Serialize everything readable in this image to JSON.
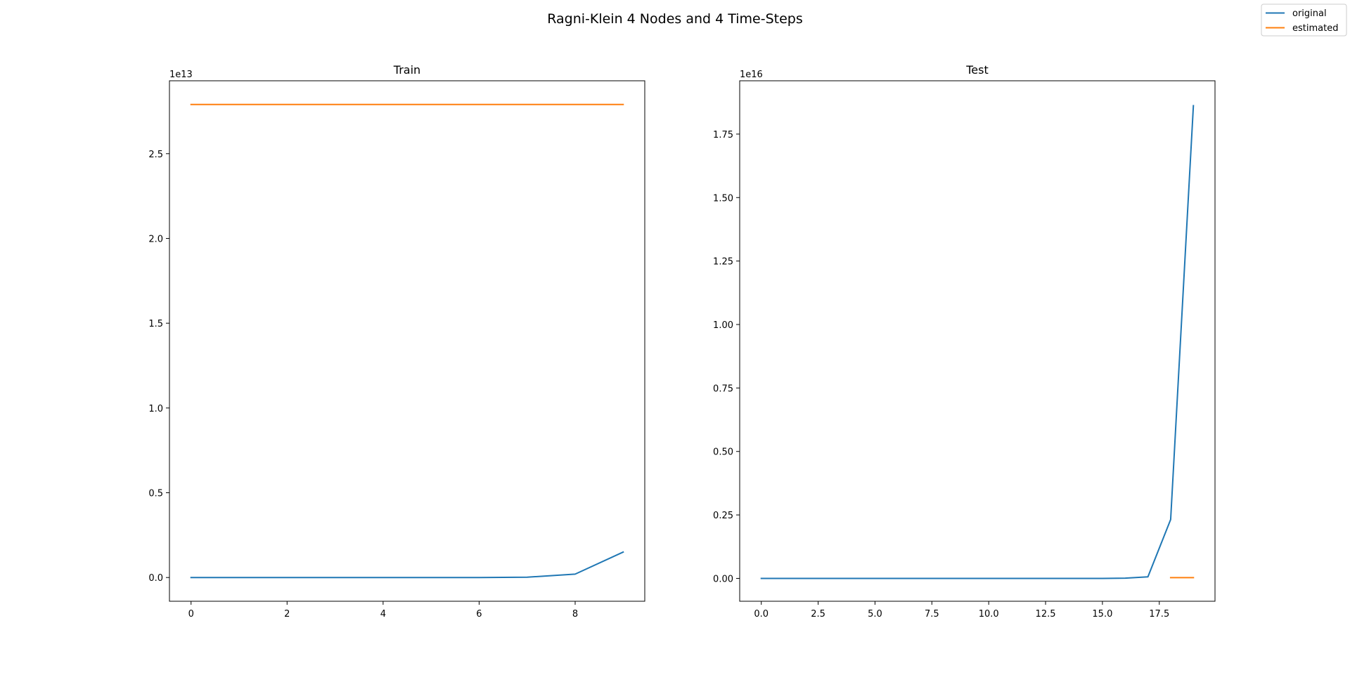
{
  "figure": {
    "title": "Ragni-Klein 4 Nodes and 4 Time-Steps"
  },
  "legend": {
    "placement": "top-right",
    "entries": [
      {
        "label": "original",
        "color": "#1f77b4"
      },
      {
        "label": "estimated",
        "color": "#ff7f0e"
      }
    ]
  },
  "chart_data": [
    {
      "type": "line",
      "title": "Train",
      "xlabel": "",
      "ylabel": "",
      "offset_text": "1e13",
      "xlim": [
        -0.45,
        9.45
      ],
      "ylim": [
        -0.14,
        2.93
      ],
      "xticks": [
        0,
        2,
        4,
        6,
        8
      ],
      "xtick_labels": [
        "0",
        "2",
        "4",
        "6",
        "8"
      ],
      "yticks": [
        0.0,
        0.5,
        1.0,
        1.5,
        2.0,
        2.5
      ],
      "ytick_labels": [
        "0.0",
        "0.5",
        "1.0",
        "1.5",
        "2.0",
        "2.5"
      ],
      "series": [
        {
          "name": "original",
          "color": "#1f77b4",
          "x": [
            0,
            1,
            2,
            3,
            4,
            5,
            6,
            7,
            8,
            9
          ],
          "y": [
            0,
            0,
            0,
            0,
            0,
            0,
            0,
            0.002,
            0.02,
            0.15
          ]
        },
        {
          "name": "estimated",
          "color": "#ff7f0e",
          "x": [
            0,
            1,
            2,
            3,
            4,
            5,
            6,
            7,
            8,
            9
          ],
          "y": [
            2.79,
            2.79,
            2.79,
            2.79,
            2.79,
            2.79,
            2.79,
            2.79,
            2.79,
            2.79
          ]
        }
      ]
    },
    {
      "type": "line",
      "title": "Test",
      "xlabel": "",
      "ylabel": "",
      "offset_text": "1e16",
      "xlim": [
        -0.95,
        19.95
      ],
      "ylim": [
        -0.09,
        1.96
      ],
      "xticks": [
        0.0,
        2.5,
        5.0,
        7.5,
        10.0,
        12.5,
        15.0,
        17.5
      ],
      "xtick_labels": [
        "0.0",
        "2.5",
        "5.0",
        "7.5",
        "10.0",
        "12.5",
        "15.0",
        "17.5"
      ],
      "yticks": [
        0.0,
        0.25,
        0.5,
        0.75,
        1.0,
        1.25,
        1.5,
        1.75
      ],
      "ytick_labels": [
        "0.00",
        "0.25",
        "0.50",
        "0.75",
        "1.00",
        "1.25",
        "1.50",
        "1.75"
      ],
      "series": [
        {
          "name": "original",
          "color": "#1f77b4",
          "x": [
            0,
            1,
            2,
            3,
            4,
            5,
            6,
            7,
            8,
            9,
            10,
            11,
            12,
            13,
            14,
            15,
            16,
            17,
            18,
            19
          ],
          "y": [
            0,
            0,
            0,
            0,
            0,
            0,
            0,
            0,
            0,
            0,
            0,
            0,
            0,
            0,
            0,
            0,
            0.001,
            0.006,
            0.232,
            1.862
          ]
        },
        {
          "name": "estimated",
          "color": "#ff7f0e",
          "x": [
            18,
            19
          ],
          "y": [
            0.003,
            0.003
          ]
        }
      ]
    }
  ]
}
